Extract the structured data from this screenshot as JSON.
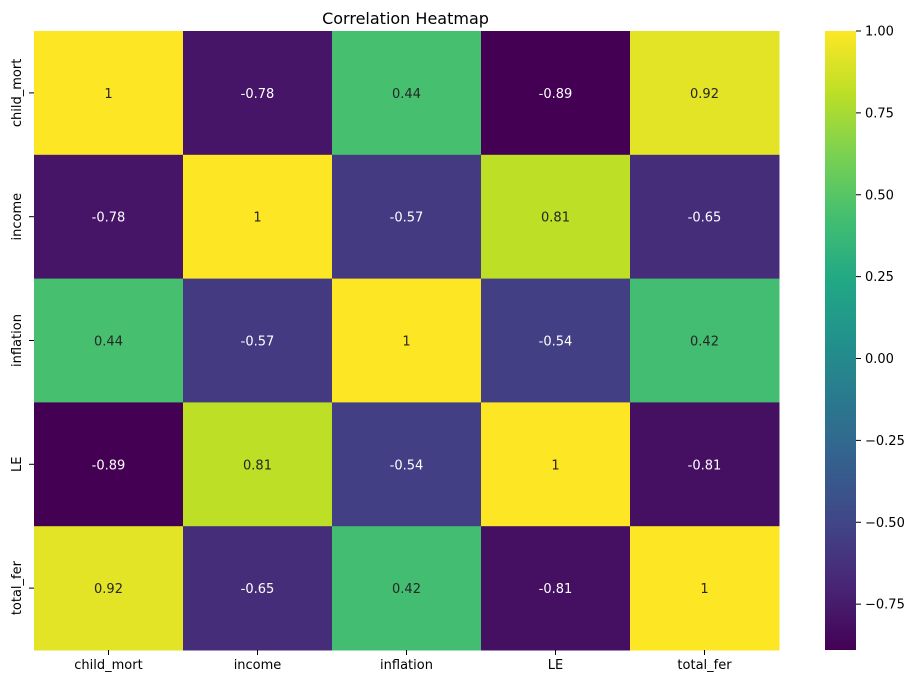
{
  "chart_data": {
    "type": "heatmap",
    "title": "Correlation Heatmap",
    "xlabel": "",
    "ylabel": "",
    "x_categories": [
      "child_mort",
      "income",
      "inflation",
      "LE",
      "total_fer"
    ],
    "y_categories": [
      "child_mort",
      "income",
      "inflation",
      "LE",
      "total_fer"
    ],
    "values": [
      [
        1,
        -0.78,
        0.44,
        -0.89,
        0.92
      ],
      [
        -0.78,
        1,
        -0.57,
        0.81,
        -0.65
      ],
      [
        0.44,
        -0.57,
        1,
        -0.54,
        0.42
      ],
      [
        -0.89,
        0.81,
        -0.54,
        1,
        -0.81
      ],
      [
        0.92,
        -0.65,
        0.42,
        -0.81,
        1
      ]
    ],
    "labels": [
      [
        "1",
        "-0.78",
        "0.44",
        "-0.89",
        "0.92"
      ],
      [
        "-0.78",
        "1",
        "-0.57",
        "0.81",
        "-0.65"
      ],
      [
        "0.44",
        "-0.57",
        "1",
        "-0.54",
        "0.42"
      ],
      [
        "-0.89",
        "0.81",
        "-0.54",
        "1",
        "-0.81"
      ],
      [
        "0.92",
        "-0.65",
        "0.42",
        "-0.81",
        "1"
      ]
    ],
    "colormap": "viridis",
    "vmin": -0.89,
    "vmax": 1.0,
    "colorbar_ticks": [
      1.0,
      0.75,
      0.5,
      0.25,
      0.0,
      -0.25,
      -0.5,
      -0.75
    ],
    "colorbar_tick_labels": [
      "1.00",
      "0.75",
      "0.50",
      "0.25",
      "0.00",
      "−0.25",
      "−0.50",
      "−0.75"
    ],
    "grid": false,
    "legend": "colorbar-right"
  }
}
